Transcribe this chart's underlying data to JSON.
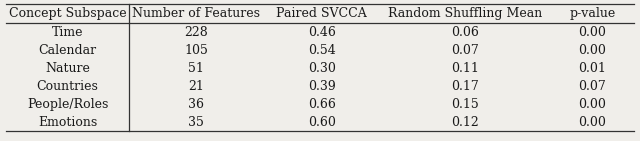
{
  "columns": [
    "Concept Subspace",
    "Number of Features",
    "Paired SVCCA",
    "Random Shuffling Mean",
    "p-value"
  ],
  "rows": [
    [
      "Time",
      "228",
      "0.46",
      "0.06",
      "0.00"
    ],
    [
      "Calendar",
      "105",
      "0.54",
      "0.07",
      "0.00"
    ],
    [
      "Nature",
      "51",
      "0.30",
      "0.11",
      "0.01"
    ],
    [
      "Countries",
      "21",
      "0.39",
      "0.17",
      "0.07"
    ],
    [
      "People/Roles",
      "36",
      "0.66",
      "0.15",
      "0.00"
    ],
    [
      "Emotions",
      "35",
      "0.60",
      "0.12",
      "0.00"
    ]
  ],
  "background_color": "#f0eeea",
  "text_color": "#1a1a1a",
  "figsize": [
    6.4,
    1.41
  ],
  "dpi": 100,
  "fontsize": 9.0,
  "header_fontsize": 9.0
}
